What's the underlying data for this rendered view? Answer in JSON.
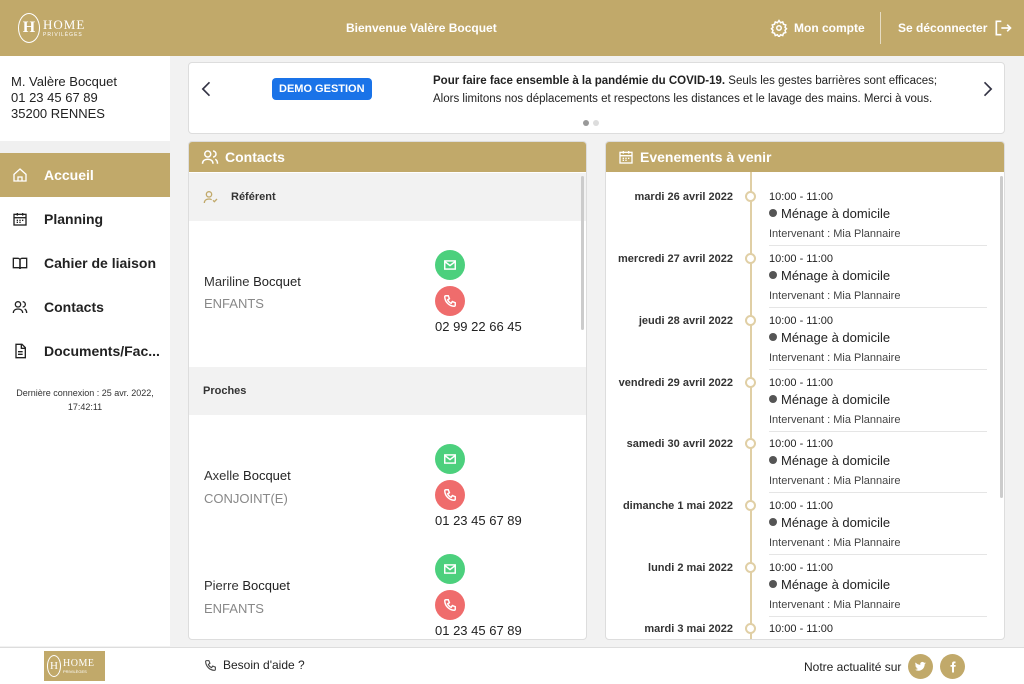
{
  "header": {
    "logo_text": "HOME",
    "logo_subtext": "PRIVILÈGES",
    "welcome": "Bienvenue Valère Bocquet",
    "account_label": "Mon compte",
    "logout_label": "Se déconnecter"
  },
  "user": {
    "name": "M. Valère Bocquet",
    "phone": "01 23 45 67 89",
    "city": "35200 RENNES"
  },
  "nav": {
    "items": [
      {
        "label": "Accueil",
        "icon": "home-icon",
        "active": true
      },
      {
        "label": "Planning",
        "icon": "calendar-icon"
      },
      {
        "label": "Cahier de liaison",
        "icon": "book-icon"
      },
      {
        "label": "Contacts",
        "icon": "users-icon"
      },
      {
        "label": "Documents/Fac...",
        "icon": "document-icon"
      }
    ]
  },
  "last_connection": {
    "line1": "Dernière connexion : 25 avr. 2022,",
    "line2": "17:42:11"
  },
  "banner": {
    "badge": "DEMO GESTION",
    "line1_bold": "Pour faire face ensemble à la pandémie du COVID-19.",
    "line1_rest": " Seuls les gestes barrières sont efficaces;",
    "line2": "Alors limitons nos déplacements et respectons les distances et le lavage des mains. Merci à vous."
  },
  "contacts": {
    "title": "Contacts",
    "section_referent": "Référent",
    "section_proches": "Proches",
    "items": [
      {
        "first": "Mariline",
        "last": "Bocquet",
        "role": "ENFANTS",
        "phone": "02 99 22 66 45"
      },
      {
        "first": "Axelle",
        "last": "Bocquet",
        "role": "CONJOINT(E)",
        "phone": "01 23 45 67 89"
      },
      {
        "first": "Pierre",
        "last": "Bocquet",
        "role": "ENFANTS",
        "phone": "01 23 45 67 89"
      }
    ]
  },
  "events": {
    "title": "Evenements à venir",
    "items": [
      {
        "date": "mardi 26 avril 2022",
        "time": "10:00 - 11:00",
        "title": "Ménage à domicile",
        "intervenant": "Intervenant : Mia Plannaire"
      },
      {
        "date": "mercredi 27 avril 2022",
        "time": "10:00 - 11:00",
        "title": "Ménage à domicile",
        "intervenant": "Intervenant : Mia Plannaire"
      },
      {
        "date": "jeudi 28 avril 2022",
        "time": "10:00 - 11:00",
        "title": "Ménage à domicile",
        "intervenant": "Intervenant : Mia Plannaire"
      },
      {
        "date": "vendredi 29 avril 2022",
        "time": "10:00 - 11:00",
        "title": "Ménage à domicile",
        "intervenant": "Intervenant : Mia Plannaire"
      },
      {
        "date": "samedi 30 avril 2022",
        "time": "10:00 - 11:00",
        "title": "Ménage à domicile",
        "intervenant": "Intervenant : Mia Plannaire"
      },
      {
        "date": "dimanche 1 mai 2022",
        "time": "10:00 - 11:00",
        "title": "Ménage à domicile",
        "intervenant": "Intervenant : Mia Plannaire"
      },
      {
        "date": "lundi 2 mai 2022",
        "time": "10:00 - 11:00",
        "title": "Ménage à domicile",
        "intervenant": "Intervenant : Mia Plannaire"
      },
      {
        "date": "mardi 3 mai 2022",
        "time": "10:00 - 11:00",
        "title": "",
        "intervenant": ""
      }
    ]
  },
  "footer": {
    "logo_text": "HOME",
    "logo_subtext": "PRIVILÈGES",
    "help": "Besoin d'aide ?",
    "social_label": "Notre actualité sur",
    "twitter": "twitter-icon",
    "facebook": "facebook-icon"
  },
  "colors": {
    "brand": "#c1a96a",
    "mail": "#4cd07d",
    "phone": "#ef6c6c",
    "badge": "#1a73e8"
  }
}
